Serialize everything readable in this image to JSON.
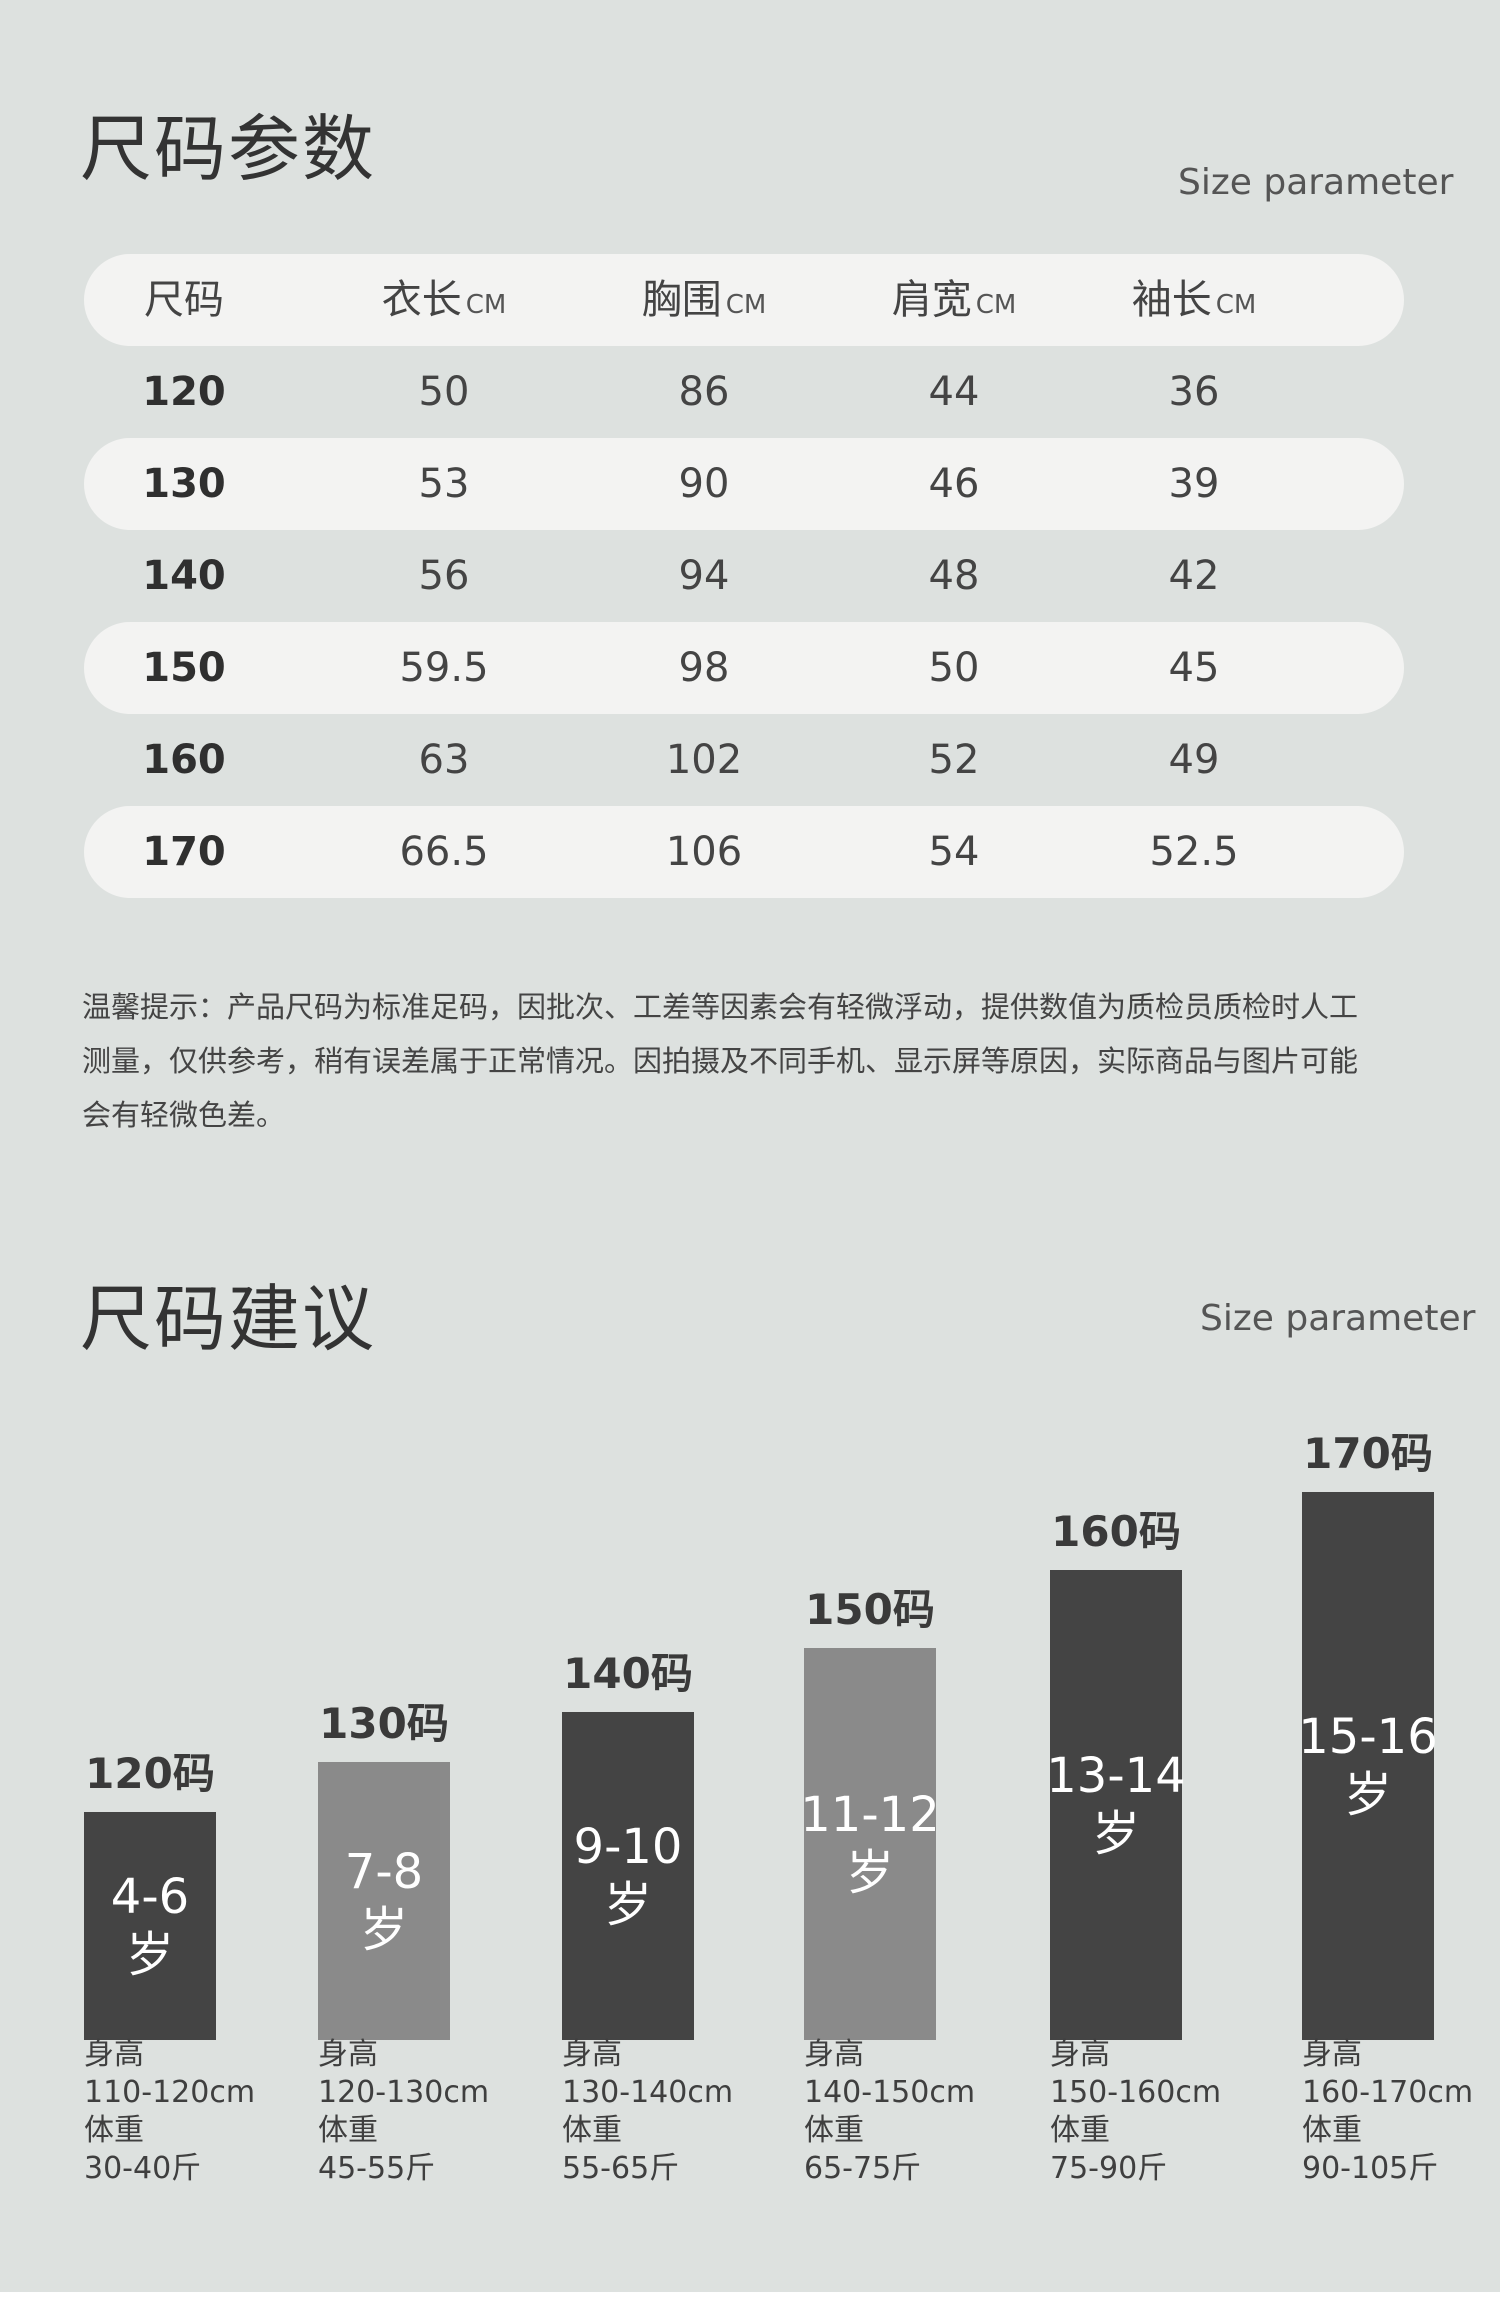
{
  "colors": {
    "panel_bg": "#dde1df",
    "row_pill": "#f3f3f2",
    "bar_dark": "#444444",
    "bar_light": "#8a8a8a"
  },
  "size_params": {
    "title": "尺码参数",
    "subtitle": "Size parameter",
    "columns": [
      {
        "label": "尺码",
        "unit": ""
      },
      {
        "label": "衣长",
        "unit": "CM"
      },
      {
        "label": "胸围",
        "unit": "CM"
      },
      {
        "label": "肩宽",
        "unit": "CM"
      },
      {
        "label": "袖长",
        "unit": "CM"
      }
    ],
    "rows": [
      [
        "120",
        "50",
        "86",
        "44",
        "36"
      ],
      [
        "130",
        "53",
        "90",
        "46",
        "39"
      ],
      [
        "140",
        "56",
        "94",
        "48",
        "42"
      ],
      [
        "150",
        "59.5",
        "98",
        "50",
        "45"
      ],
      [
        "160",
        "63",
        "102",
        "52",
        "49"
      ],
      [
        "170",
        "66.5",
        "106",
        "54",
        "52.5"
      ]
    ],
    "notice_lines": [
      "温馨提示：产品尺码为标准足码，因批次、工差等因素会有轻微浮动，提供数值为质检员质检时人工",
      "测量，仅供参考，稍有误差属于正常情况。因拍摄及不同手机、显示屏等原因，实际商品与图片可能",
      "会有轻微色差。"
    ]
  },
  "size_advice": {
    "title": "尺码建议",
    "subtitle": "Size parameter",
    "items": [
      {
        "size": "120码",
        "age_top": "4-6",
        "age_bottom": "岁",
        "tone": "dark",
        "height_label": "身高",
        "height": "110-120cm",
        "weight_label": "体重",
        "weight": "30-40斤"
      },
      {
        "size": "130码",
        "age_top": "7-8",
        "age_bottom": "岁",
        "tone": "light",
        "height_label": "身高",
        "height": "120-130cm",
        "weight_label": "体重",
        "weight": "45-55斤"
      },
      {
        "size": "140码",
        "age_top": "9-10",
        "age_bottom": "岁",
        "tone": "dark",
        "height_label": "身高",
        "height": "130-140cm",
        "weight_label": "体重",
        "weight": "55-65斤"
      },
      {
        "size": "150码",
        "age_top": "11-12",
        "age_bottom": "岁",
        "tone": "light",
        "height_label": "身高",
        "height": "140-150cm",
        "weight_label": "体重",
        "weight": "65-75斤"
      },
      {
        "size": "160码",
        "age_top": "13-14",
        "age_bottom": "岁",
        "tone": "dark",
        "height_label": "身高",
        "height": "150-160cm",
        "weight_label": "体重",
        "weight": "75-90斤"
      },
      {
        "size": "170码",
        "age_top": "15-16",
        "age_bottom": "岁",
        "tone": "dark",
        "height_label": "身高",
        "height": "160-170cm",
        "weight_label": "体重",
        "weight": "90-105斤"
      }
    ]
  }
}
